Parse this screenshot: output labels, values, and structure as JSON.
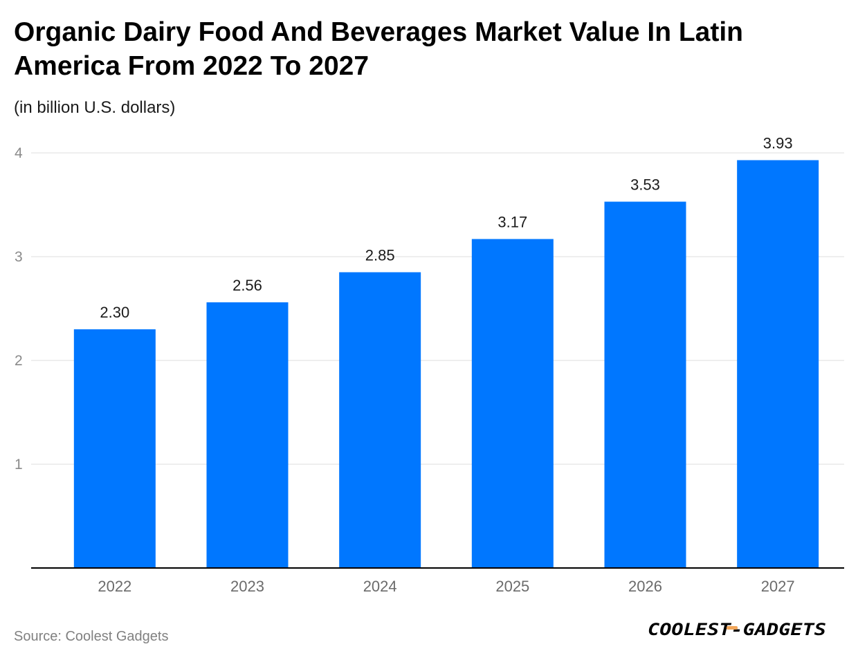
{
  "chart_data": {
    "type": "bar",
    "title": "Organic Dairy Food And Beverages Market Value In Latin America From 2022 To 2027",
    "subtitle": "(in billion U.S. dollars)",
    "categories": [
      "2022",
      "2023",
      "2024",
      "2025",
      "2026",
      "2027"
    ],
    "values": [
      2.3,
      2.56,
      2.85,
      3.17,
      3.53,
      3.93
    ],
    "value_labels": [
      "2.30",
      "2.56",
      "2.85",
      "3.17",
      "3.53",
      "3.93"
    ],
    "y_ticks": [
      "1",
      "2",
      "3",
      "4"
    ],
    "ylim": [
      0,
      4
    ],
    "grid": true,
    "bar_color": "#0077ff"
  },
  "footer": {
    "source": "Source: Coolest Gadgets",
    "brand": "COOLEST-GADGETS",
    "brand_accent_color": "#f2a65a"
  }
}
